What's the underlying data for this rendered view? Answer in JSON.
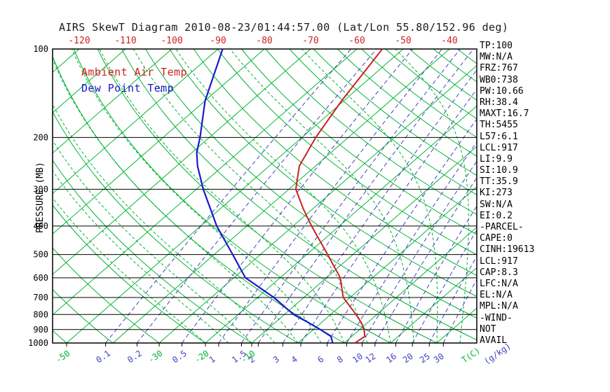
{
  "title": "AIRS SkewT Diagram 2010-08-23/01:44:57.00 (Lat/Lon 55.80/152.96 deg)",
  "legend": {
    "temp": "Ambient Air Temp",
    "dewpoint": "Dew Point Temp"
  },
  "y_axis": {
    "label": "PRESSURE (MB)",
    "ticks": [
      100,
      200,
      300,
      400,
      500,
      600,
      700,
      800,
      900,
      1000
    ]
  },
  "x_axis_top": {
    "ticks": [
      -120,
      -110,
      -100,
      -90,
      -80,
      -70,
      -60,
      -50,
      -40
    ]
  },
  "x_axis_bottom": {
    "temp_ticks": [
      -50,
      -30,
      -20,
      -10
    ],
    "temp_unit": "T(C)",
    "mixing_unit": "(g/kg)"
  },
  "stats_panel": [
    "TP:100",
    "MW:N/A",
    "FRZ:767",
    "WB0:738",
    "PW:10.66",
    "RH:38.4",
    "MAXT:16.7",
    "TH:5455",
    "L57:6.1",
    "LCL:917",
    "LI:9.9",
    "SI:10.9",
    "TT:35.9",
    "KI:273",
    "SW:N/A",
    "EI:0.2",
    "-PARCEL-",
    "CAPE:0",
    "CINH:19613",
    "LCL:917",
    "CAP:8.3",
    "LFC:N/A",
    "EL:N/A",
    "MPL:N/A",
    "-WIND-",
    "NOT",
    "AVAIL"
  ],
  "colors": {
    "red": "#cc2222",
    "blue": "#1a1acc",
    "green": "#00b432",
    "purple": "#4343bf",
    "black": "#000000"
  },
  "chart_data": {
    "type": "line",
    "subtype": "skew-t-log-p",
    "title": "AIRS SkewT Diagram 2010-08-23/01:44:57.00 (Lat/Lon 55.80/152.96 deg)",
    "xlabel": "T(C)",
    "ylabel": "PRESSURE (MB)",
    "pressure_range_mb": [
      100,
      1000
    ],
    "grid": true,
    "legend_position": "top-left",
    "isotherms_c": {
      "min": -130,
      "max": 40,
      "step": 10
    },
    "dry_adiabats_c": {
      "min": -50,
      "max": 190,
      "step": 10
    },
    "moist_adiabats_c": {
      "min": -20,
      "max": 40,
      "step": 5
    },
    "mixing_ratio_lines_gkg": [
      0.1,
      0.2,
      0.5,
      1,
      1.5,
      2,
      3,
      4,
      6,
      8,
      10,
      12,
      16,
      20,
      25,
      30
    ],
    "series": [
      {
        "name": "Ambient Air Temp",
        "color_key": "red",
        "points": [
          {
            "p": 1000,
            "t": 12.3
          },
          {
            "p": 950,
            "t": 12.8
          },
          {
            "p": 900,
            "t": 11.0
          },
          {
            "p": 850,
            "t": 8.5
          },
          {
            "p": 800,
            "t": 5.5
          },
          {
            "p": 700,
            "t": -1.5
          },
          {
            "p": 600,
            "t": -7.0
          },
          {
            "p": 500,
            "t": -15.5
          },
          {
            "p": 400,
            "t": -26.0
          },
          {
            "p": 350,
            "t": -32.0
          },
          {
            "p": 300,
            "t": -38.5
          },
          {
            "p": 250,
            "t": -43.5
          },
          {
            "p": 200,
            "t": -47.0
          },
          {
            "p": 150,
            "t": -50.5
          },
          {
            "p": 100,
            "t": -54.5
          }
        ]
      },
      {
        "name": "Dew Point Temp",
        "color_key": "blue",
        "points": [
          {
            "p": 1000,
            "t": 7.5
          },
          {
            "p": 950,
            "t": 5.5
          },
          {
            "p": 900,
            "t": 1.5
          },
          {
            "p": 850,
            "t": -3.0
          },
          {
            "p": 800,
            "t": -8.0
          },
          {
            "p": 700,
            "t": -16.5
          },
          {
            "p": 600,
            "t": -27.5
          },
          {
            "p": 500,
            "t": -36.0
          },
          {
            "p": 400,
            "t": -46.5
          },
          {
            "p": 300,
            "t": -58.5
          },
          {
            "p": 250,
            "t": -65.5
          },
          {
            "p": 225,
            "t": -69.0
          },
          {
            "p": 200,
            "t": -72.0
          },
          {
            "p": 150,
            "t": -80.0
          },
          {
            "p": 100,
            "t": -89.0
          }
        ]
      }
    ]
  }
}
